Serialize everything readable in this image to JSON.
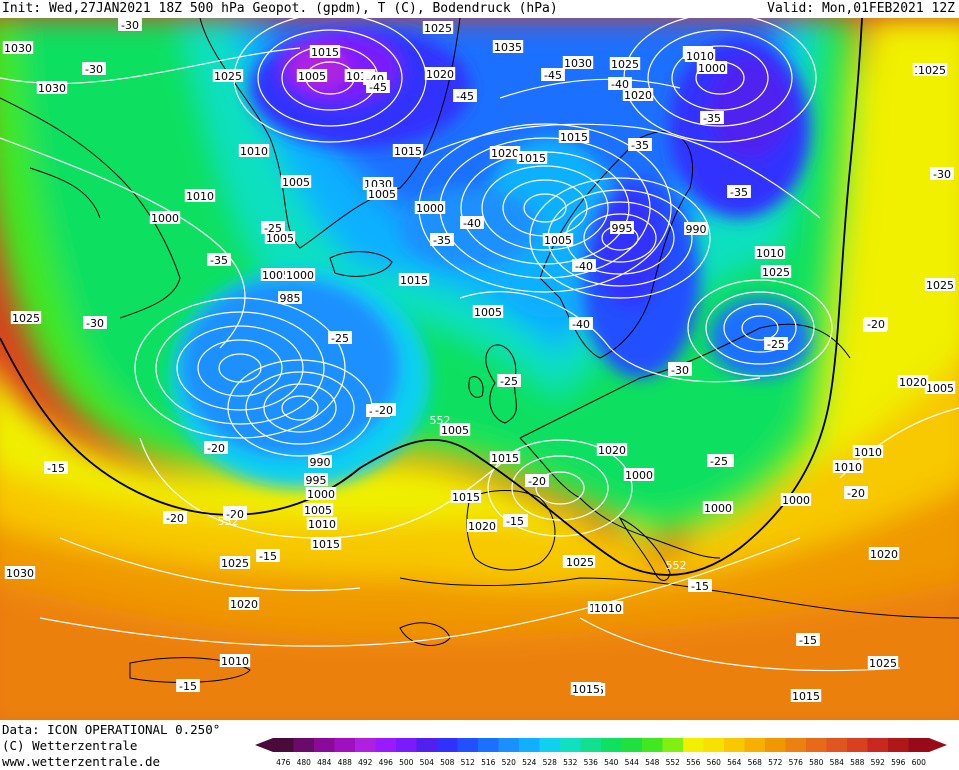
{
  "header": {
    "init": "Init: Wed,27JAN2021 18Z",
    "fields": "500 hPa Geopot. (gpdm), T (C), Bodendruck (hPa)",
    "valid": "Valid: Mon,01FEB2021 12Z"
  },
  "footer": {
    "data_line": "Data: ICON OPERATIONAL 0.250°",
    "copyright": "(C) Wetterzentrale",
    "url": "www.wetterzentrale.de"
  },
  "colors": {
    "c476": "#4a0a3a",
    "c480": "#6a0a6a",
    "c484": "#8a0a9a",
    "c488": "#a010c0",
    "c492": "#b020e0",
    "c496": "#9a1aff",
    "c500": "#7a1aff",
    "c504": "#5020f0",
    "c508": "#3030ff",
    "c512": "#2050ff",
    "c516": "#1a70ff",
    "c520": "#1a90ff",
    "c524": "#10b0ff",
    "c528": "#10d0f0",
    "c532": "#10e0c0",
    "c536": "#10e090",
    "c540": "#10e060",
    "c544": "#20e040",
    "c548": "#40e820",
    "c552": "#80f010",
    "c556": "#f0f000",
    "c560": "#f8e000",
    "c564": "#f8c800",
    "c568": "#f8b000",
    "c572": "#f09800",
    "c576": "#ec8010",
    "c580": "#e86a18",
    "c584": "#e05520",
    "c588": "#d84020",
    "c592": "#c82820",
    "c596": "#b01818",
    "c600": "#980a18"
  },
  "scale": {
    "ticks": [
      "476",
      "480",
      "484",
      "488",
      "492",
      "496",
      "500",
      "504",
      "508",
      "512",
      "516",
      "520",
      "524",
      "528",
      "532",
      "536",
      "540",
      "544",
      "548",
      "552",
      "556",
      "560",
      "564",
      "568",
      "572",
      "576",
      "580",
      "584",
      "588",
      "592",
      "596",
      "600"
    ]
  },
  "pressure_labels": [
    "1015",
    "1025",
    "1035",
    "1030",
    "1025",
    "1010",
    "1000",
    "1010",
    "1020",
    "1030",
    "1025",
    "1010",
    "1020",
    "1015",
    "1025",
    "1030",
    "1010",
    "1005",
    "1015",
    "1020",
    "1015",
    "1010",
    "1005",
    "1030",
    "1005",
    "1000",
    "1010",
    "1000",
    "1005",
    "1005",
    "995",
    "990",
    "1010",
    "1025",
    "1015",
    "1005",
    "1005",
    "1000",
    "985",
    "990",
    "995",
    "1000",
    "1005",
    "1010",
    "1015",
    "1005",
    "1015",
    "1020",
    "1000",
    "1000",
    "1000",
    "1010",
    "1010",
    "1005",
    "1020",
    "1015",
    "1025",
    "1020",
    "1015",
    "1015",
    "1010",
    "1005",
    "1015",
    "1025",
    "1025",
    "1020",
    "1025",
    "1025",
    "1030",
    "1025",
    "1010",
    "1015",
    "1020"
  ],
  "temp_labels": [
    "-30",
    "-30",
    "-40",
    "-45",
    "-45",
    "-45",
    "-40",
    "-35",
    "-35",
    "-35",
    "-25",
    "-40",
    "-35",
    "-35",
    "-30",
    "-40",
    "-40",
    "-25",
    "-25",
    "-30",
    "-25",
    "-30",
    "-25",
    "-20",
    "-20",
    "-20",
    "-25",
    "-20",
    "-15",
    "-20",
    "-15",
    "-15",
    "-15",
    "-15",
    "-15",
    "-20",
    "-25",
    "-20",
    "-15",
    "-20",
    "-20",
    "-30"
  ],
  "height_labels": [
    "552",
    "552",
    "552"
  ]
}
